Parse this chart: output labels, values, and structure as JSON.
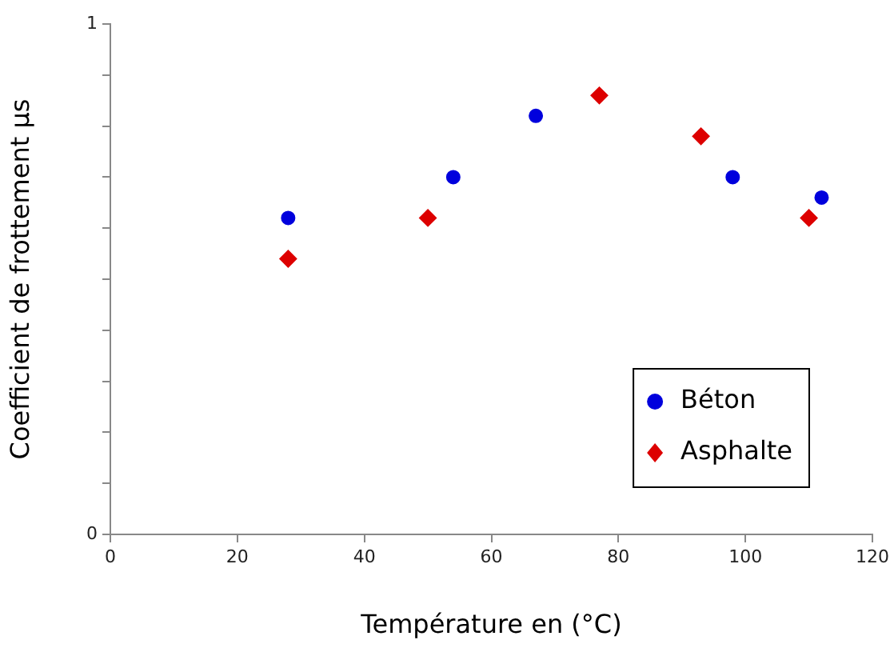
{
  "chart_data": {
    "type": "scatter",
    "xlabel": "Température en (°C)",
    "ylabel": "Coefficient de frottement µs",
    "xlim": [
      0,
      120
    ],
    "xticks": [
      0,
      20,
      40,
      60,
      80,
      100,
      120
    ],
    "ylim": [
      0,
      1
    ],
    "yticks": [
      0,
      {
        "value": 0.1,
        "label": null
      },
      {
        "value": 0.2,
        "label": null
      },
      {
        "value": 0.3,
        "label": null
      },
      {
        "value": 0.4,
        "label": null
      },
      {
        "value": 0.5,
        "label": null
      },
      {
        "value": 0.6,
        "label": null
      },
      {
        "value": 0.7,
        "label": null
      },
      {
        "value": 0.8,
        "label": null
      },
      {
        "value": 0.9,
        "label": null
      },
      1
    ],
    "grid": false,
    "legend": "bottom right",
    "series": [
      {
        "name": "Béton",
        "color": "#0000dd",
        "marker": "circle",
        "x": [
          28,
          54,
          67,
          98,
          112
        ],
        "values": [
          0.62,
          0.7,
          0.82,
          0.7,
          0.66
        ]
      },
      {
        "name": "Asphalte",
        "color": "#dd0000",
        "marker": "diamond",
        "x": [
          28,
          50,
          77,
          93,
          110
        ],
        "values": [
          0.54,
          0.62,
          0.86,
          0.78,
          0.62
        ]
      }
    ]
  }
}
